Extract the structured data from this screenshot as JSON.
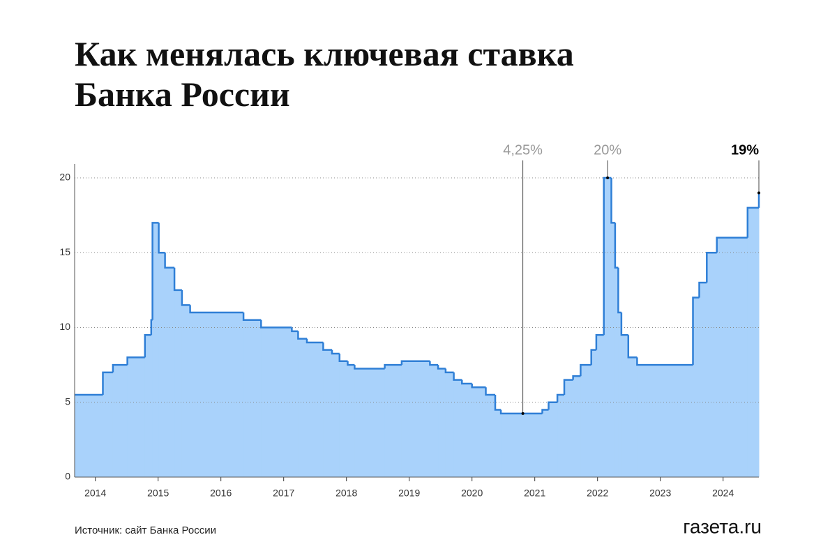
{
  "chart_data": {
    "type": "step-area",
    "title": "Как менялась ключевая ставка Банка России",
    "source": "Источник: сайт Банка России",
    "logo": "газета.ru",
    "color": "#2f7fd6",
    "fill": "#a9d2fb",
    "x": [
      2013.67,
      2014.12,
      2014.28,
      2014.51,
      2014.79,
      2014.89,
      2014.91,
      2015.01,
      2015.11,
      2015.26,
      2015.38,
      2015.51,
      2016.36,
      2016.64,
      2017.13,
      2017.23,
      2017.37,
      2017.63,
      2017.77,
      2017.89,
      2018.02,
      2018.13,
      2018.61,
      2018.88,
      2019.33,
      2019.46,
      2019.58,
      2019.71,
      2019.84,
      2020.0,
      2020.22,
      2020.37,
      2020.46,
      2021.12,
      2021.22,
      2021.36,
      2021.47,
      2021.61,
      2021.73,
      2021.9,
      2021.98,
      2022.1,
      2022.22,
      2022.28,
      2022.33,
      2022.38,
      2022.49,
      2022.63,
      2023.52,
      2023.62,
      2023.74,
      2023.9,
      2024.39,
      2024.57
    ],
    "values": [
      5.5,
      7,
      7.5,
      8,
      9.5,
      10.5,
      17,
      15,
      14,
      12.5,
      11.5,
      11,
      10.5,
      10,
      9.75,
      9.25,
      9,
      8.5,
      8.25,
      7.75,
      7.5,
      7.25,
      7.5,
      7.75,
      7.5,
      7.25,
      7,
      6.5,
      6.25,
      6,
      5.5,
      4.5,
      4.25,
      4.5,
      5,
      5.5,
      6.5,
      6.75,
      7.5,
      8.5,
      9.5,
      20,
      17,
      14,
      11,
      9.5,
      8,
      7.5,
      12,
      13,
      15,
      16,
      18,
      19
    ],
    "xlim": [
      2013.67,
      2024.57
    ],
    "xticks": [
      2014,
      2015,
      2016,
      2017,
      2018,
      2019,
      2020,
      2021,
      2022,
      2023,
      2024
    ],
    "ylim": [
      0,
      20
    ],
    "yticks": [
      0,
      5,
      10,
      15,
      20
    ],
    "grid": true,
    "annotations": [
      {
        "x": 2020.81,
        "value": 4.25,
        "label": "4,25%",
        "color": "#999999"
      },
      {
        "x": 2022.16,
        "value": 20,
        "label": "20%",
        "color": "#999999"
      },
      {
        "x": 2024.57,
        "value": 19,
        "label": "19%",
        "color": "#000000"
      }
    ]
  }
}
